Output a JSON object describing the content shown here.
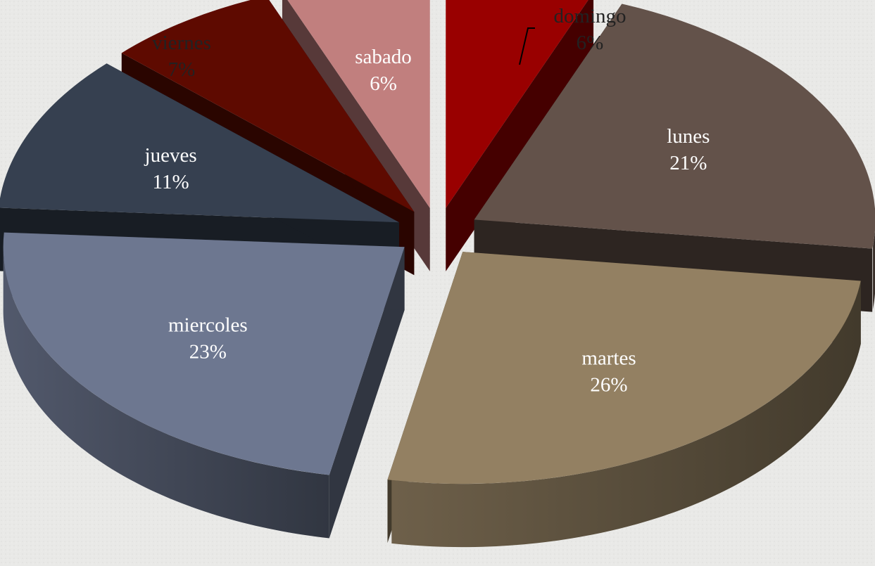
{
  "chart_data": {
    "type": "pie",
    "style": "3d-exploded",
    "title": "",
    "slices": [
      {
        "label": "domingo",
        "percent_label": "6%",
        "value": 6,
        "color": "#990000",
        "text_color": "#222222",
        "label_position": "outside"
      },
      {
        "label": "lunes",
        "percent_label": "21%",
        "value": 21,
        "color": "#63524a",
        "text_color": "#ffffff",
        "label_position": "inside"
      },
      {
        "label": "martes",
        "percent_label": "26%",
        "value": 26,
        "color": "#938062",
        "text_color": "#ffffff",
        "label_position": "inside"
      },
      {
        "label": "miercoles",
        "percent_label": "23%",
        "value": 23,
        "color": "#6d7790",
        "text_color": "#ffffff",
        "label_position": "inside"
      },
      {
        "label": "jueves",
        "percent_label": "11%",
        "value": 11,
        "color": "#364050",
        "text_color": "#ffffff",
        "label_position": "inside"
      },
      {
        "label": "viernes",
        "percent_label": "7%",
        "value": 7,
        "color": "#5e0a00",
        "text_color": "#222222",
        "label_position": "outside"
      },
      {
        "label": "sabado",
        "percent_label": "6%",
        "value": 6,
        "color": "#c17f7e",
        "text_color": "#ffffff",
        "label_position": "inside"
      }
    ],
    "legend": "none"
  }
}
